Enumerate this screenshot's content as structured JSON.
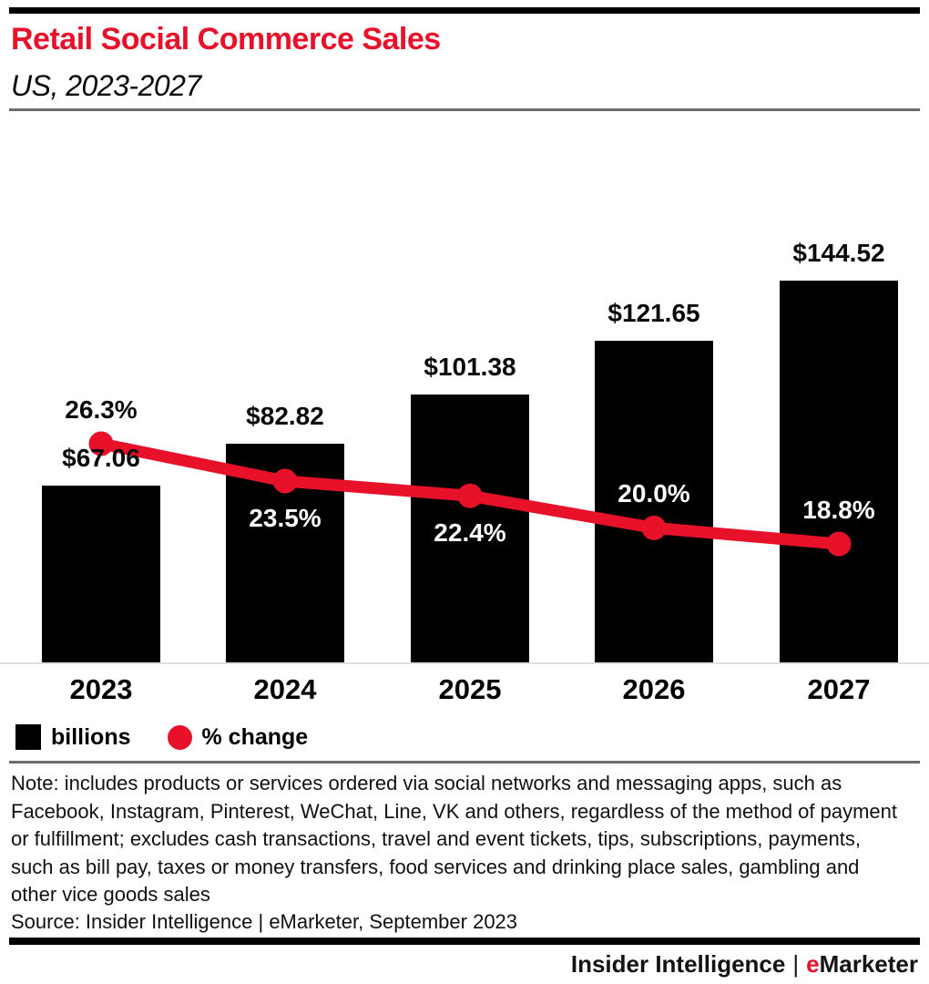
{
  "header": {
    "title": "Retail Social Commerce Sales",
    "subtitle": "US, 2023-2027"
  },
  "colors": {
    "accent_red": "#e8112a",
    "bar_black": "#000000",
    "divider_gray": "#6b6b6b",
    "baseline_gray": "#dcdfe8"
  },
  "chart_data": {
    "type": "bar",
    "subtype": "combo-bar-line",
    "title": "Retail Social Commerce Sales",
    "subtitle": "US, 2023-2027",
    "categories": [
      "2023",
      "2024",
      "2025",
      "2026",
      "2027"
    ],
    "series": [
      {
        "name": "billions",
        "type": "bar",
        "color": "#000000",
        "values": [
          67.06,
          82.82,
          101.38,
          121.65,
          144.52
        ],
        "labels": [
          "$67.06",
          "$82.82",
          "$101.38",
          "$121.65",
          "$144.52"
        ]
      },
      {
        "name": "% change",
        "type": "line",
        "color": "#e8112a",
        "values": [
          26.3,
          23.5,
          22.4,
          20.0,
          18.8
        ],
        "labels": [
          "26.3%",
          "23.5%",
          "22.4%",
          "20.0%",
          "18.8%"
        ],
        "label_positions": [
          "above",
          "below",
          "below",
          "above",
          "above"
        ],
        "label_colors": [
          "#0a0a0a",
          "#ffffff",
          "#ffffff",
          "#ffffff",
          "#ffffff"
        ]
      }
    ],
    "legend": [
      {
        "label": "billions",
        "swatch": "square",
        "color": "#000000"
      },
      {
        "label": "% change",
        "swatch": "circle",
        "color": "#e8112a"
      }
    ],
    "legend_position": "bottom",
    "grid": false,
    "value_axis_shown": false
  },
  "note": {
    "text": "Note: includes products or services ordered via social networks and messaging apps, such as Facebook, Instagram, Pinterest, WeChat, Line, VK and others, regardless of the method of payment or fulfillment; excludes cash transactions, travel and event tickets, tips, subscriptions, payments, such as bill pay, taxes or money transfers, food services and drinking place sales, gambling and other vice goods sales"
  },
  "source": {
    "text": "Source: Insider Intelligence | eMarketer, September 2023"
  },
  "footer": {
    "brand_left": "Insider Intelligence",
    "separator": "|",
    "emarketer_e": "e",
    "emarketer_rest": "Marketer"
  }
}
